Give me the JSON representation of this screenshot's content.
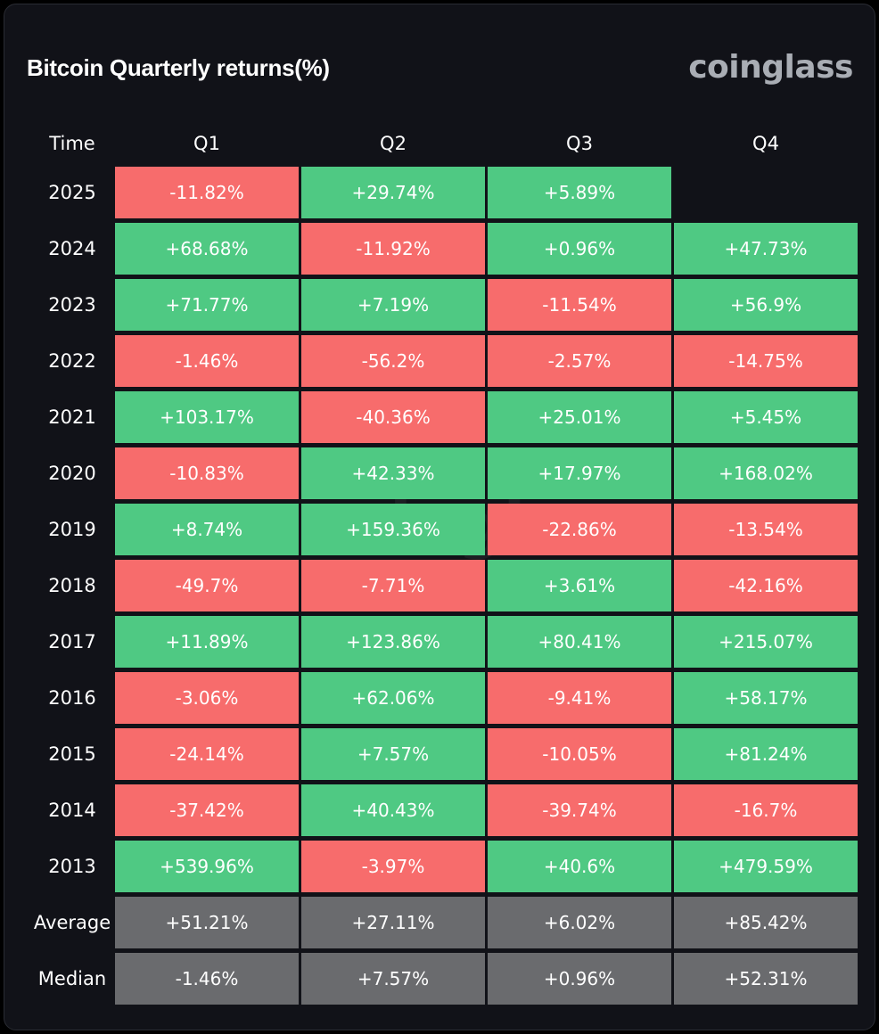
{
  "title": "Bitcoin Quarterly returns(%)",
  "brand": "coinglass",
  "colors": {
    "positive": "#4fc983",
    "negative": "#f76c6c",
    "summary": "#6a6b6e",
    "background": "#111218"
  },
  "headers": [
    "Time",
    "Q1",
    "Q2",
    "Q3",
    "Q4"
  ],
  "chart_data": {
    "type": "table",
    "title": "Bitcoin Quarterly returns(%)",
    "columns": [
      "Q1",
      "Q2",
      "Q3",
      "Q4"
    ],
    "rows": [
      {
        "label": "2025",
        "values": [
          "-11.82%",
          "+29.74%",
          "+5.89%",
          ""
        ]
      },
      {
        "label": "2024",
        "values": [
          "+68.68%",
          "-11.92%",
          "+0.96%",
          "+47.73%"
        ]
      },
      {
        "label": "2023",
        "values": [
          "+71.77%",
          "+7.19%",
          "-11.54%",
          "+56.9%"
        ]
      },
      {
        "label": "2022",
        "values": [
          "-1.46%",
          "-56.2%",
          "-2.57%",
          "-14.75%"
        ]
      },
      {
        "label": "2021",
        "values": [
          "+103.17%",
          "-40.36%",
          "+25.01%",
          "+5.45%"
        ]
      },
      {
        "label": "2020",
        "values": [
          "-10.83%",
          "+42.33%",
          "+17.97%",
          "+168.02%"
        ]
      },
      {
        "label": "2019",
        "values": [
          "+8.74%",
          "+159.36%",
          "-22.86%",
          "-13.54%"
        ]
      },
      {
        "label": "2018",
        "values": [
          "-49.7%",
          "-7.71%",
          "+3.61%",
          "-42.16%"
        ]
      },
      {
        "label": "2017",
        "values": [
          "+11.89%",
          "+123.86%",
          "+80.41%",
          "+215.07%"
        ]
      },
      {
        "label": "2016",
        "values": [
          "-3.06%",
          "+62.06%",
          "-9.41%",
          "+58.17%"
        ]
      },
      {
        "label": "2015",
        "values": [
          "-24.14%",
          "+7.57%",
          "-10.05%",
          "+81.24%"
        ]
      },
      {
        "label": "2014",
        "values": [
          "-37.42%",
          "+40.43%",
          "-39.74%",
          "-16.7%"
        ]
      },
      {
        "label": "2013",
        "values": [
          "+539.96%",
          "-3.97%",
          "+40.6%",
          "+479.59%"
        ]
      }
    ],
    "summary": [
      {
        "label": "Average",
        "values": [
          "+51.21%",
          "+27.11%",
          "+6.02%",
          "+85.42%"
        ]
      },
      {
        "label": "Median",
        "values": [
          "-1.46%",
          "+7.57%",
          "+0.96%",
          "+52.31%"
        ]
      }
    ]
  }
}
